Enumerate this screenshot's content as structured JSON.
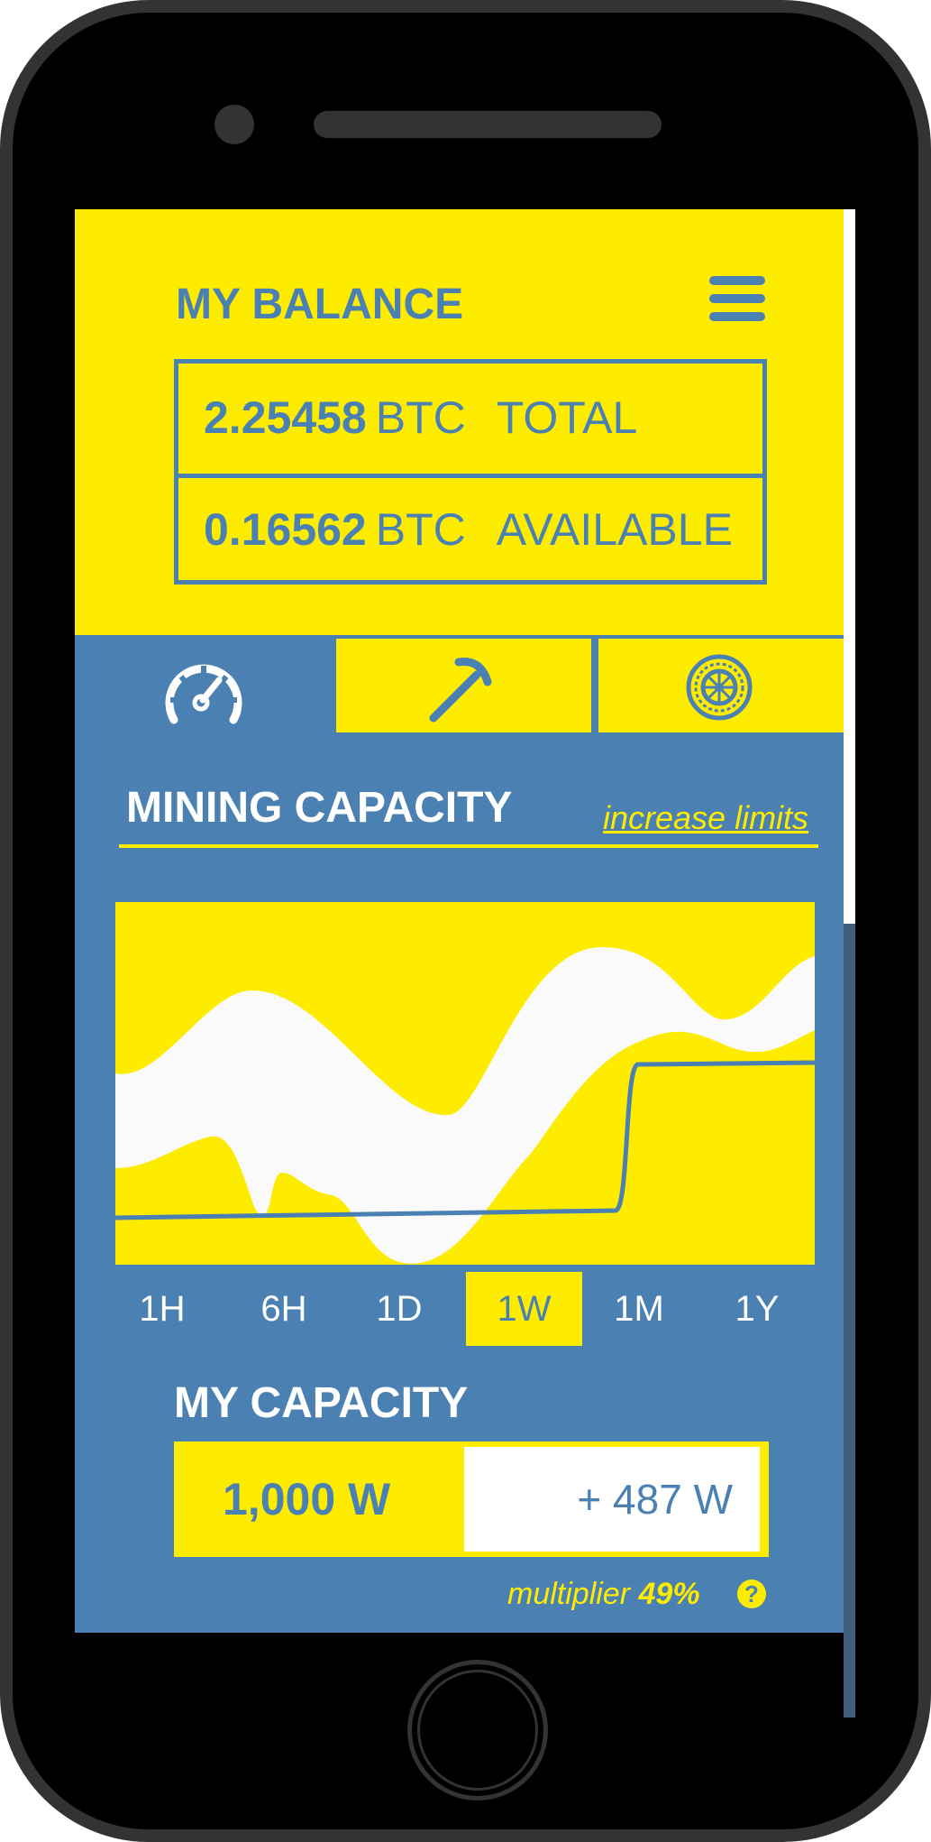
{
  "header": {
    "title": "MY BALANCE",
    "menu_icon": "hamburger-menu-icon"
  },
  "balance": {
    "total": {
      "amount": "2.25458",
      "unit": "BTC",
      "label": "TOTAL"
    },
    "available": {
      "amount": "0.16562",
      "unit": "BTC",
      "label": "AVAILABLE"
    }
  },
  "tabs": [
    {
      "icon": "speedometer-icon",
      "active": true
    },
    {
      "icon": "pickaxe-icon",
      "active": false
    },
    {
      "icon": "wheel-icon",
      "active": false
    }
  ],
  "mining": {
    "title": "MINING CAPACITY",
    "link": "increase limits"
  },
  "ranges": [
    "1H",
    "6H",
    "1D",
    "1W",
    "1M",
    "1Y"
  ],
  "active_range": "1W",
  "capacity": {
    "title": "MY CAPACITY",
    "value": "1,000 W",
    "add": "+ 487 W",
    "multiplier_label": "multiplier",
    "multiplier_value": "49%",
    "help": "?"
  },
  "colors": {
    "yellow": "#fdeb00",
    "blue": "#4b80b3",
    "white": "#ffffff"
  }
}
